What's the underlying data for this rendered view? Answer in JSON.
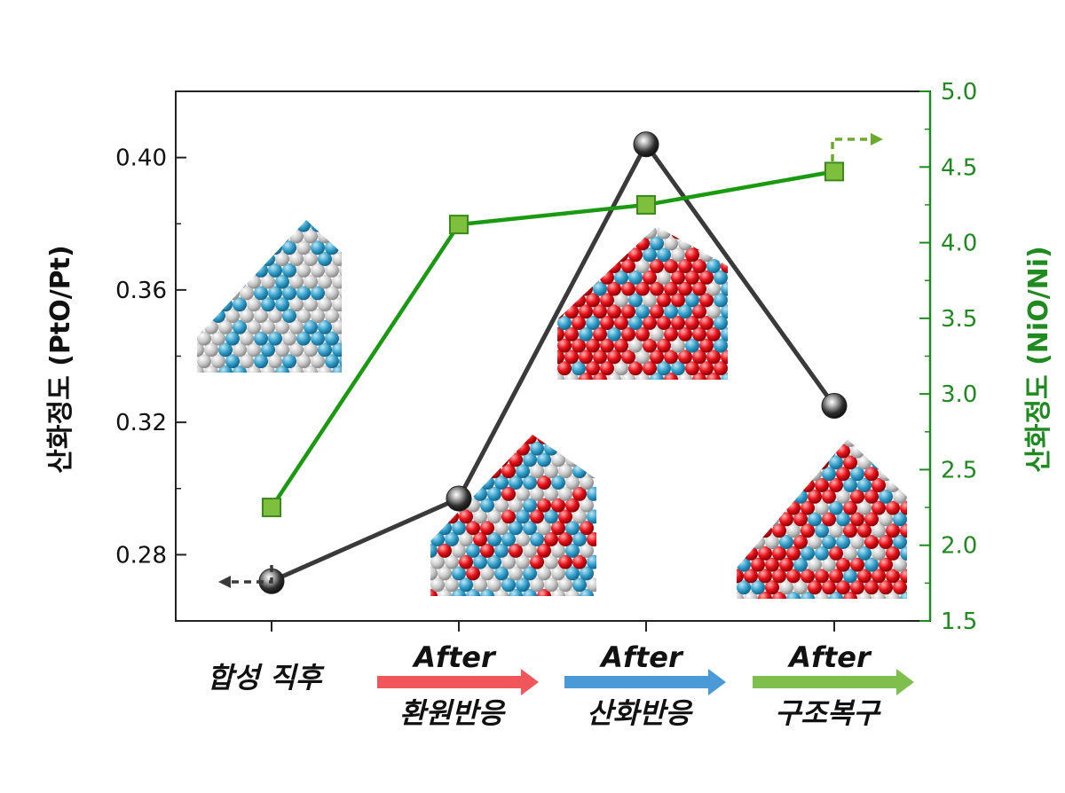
{
  "chart_data": {
    "type": "line",
    "categories": [
      "합성 직후",
      "환원반응",
      "산화반응",
      "구조복구"
    ],
    "category_prefix": [
      "",
      "After",
      "After",
      "After"
    ],
    "category_arrow_colors": [
      "",
      "#f0565a",
      "#4a9ad8",
      "#7fbf4e"
    ],
    "series": [
      {
        "axis": "left",
        "color": "#3a3a3a",
        "marker": "sphere",
        "values": [
          0.272,
          0.297,
          0.404,
          0.325
        ]
      },
      {
        "axis": "right",
        "color": "#1a9a10",
        "marker": "square",
        "values": [
          2.25,
          4.12,
          4.25,
          4.47
        ]
      }
    ],
    "ylabel_left": "산화정도  (PtO/Pt)",
    "ylabel_right": "산화정도 (NiO/Ni)",
    "ylim_left": [
      0.26,
      0.42
    ],
    "ylim_right": [
      1.5,
      5.0
    ],
    "yticks_left": [
      "0.28",
      "0.32",
      "0.36",
      "0.40"
    ],
    "yticks_left_values": [
      0.28,
      0.32,
      0.36,
      0.4
    ],
    "yticks_right": [
      "1.5",
      "2.0",
      "2.5",
      "3.0",
      "3.5",
      "4.0",
      "4.5",
      "5.0"
    ],
    "yticks_right_values": [
      1.5,
      2.0,
      2.5,
      3.0,
      3.5,
      4.0,
      4.5,
      5.0
    ],
    "grid": false
  }
}
